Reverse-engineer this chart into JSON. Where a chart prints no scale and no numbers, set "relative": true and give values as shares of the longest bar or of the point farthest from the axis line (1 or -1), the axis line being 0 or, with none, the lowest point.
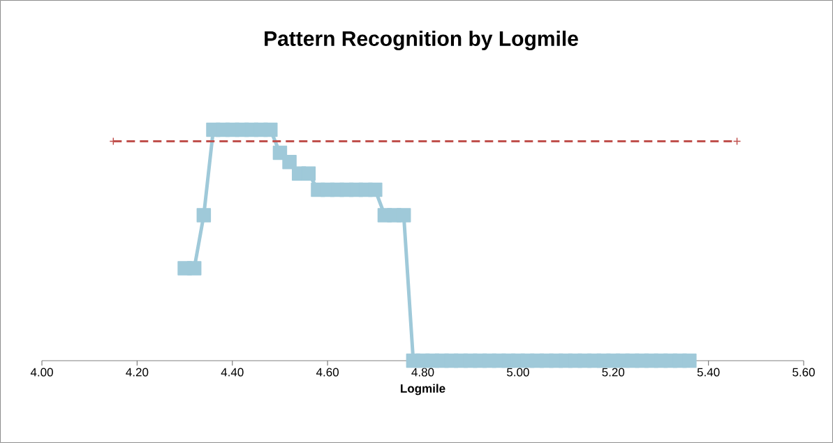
{
  "chart_data": {
    "type": "line",
    "title": "Pattern Recognition by Logmile",
    "xlabel": "Logmile",
    "relative": true,
    "xlim": [
      4.0,
      5.6
    ],
    "xticks": [
      {
        "value": 4.0,
        "label": "4.00"
      },
      {
        "value": 4.2,
        "label": "4.20"
      },
      {
        "value": 4.4,
        "label": "4.40"
      },
      {
        "value": 4.6,
        "label": "4.60"
      },
      {
        "value": 4.8,
        "label": "4.80"
      },
      {
        "value": 5.0,
        "label": "5.00"
      },
      {
        "value": 5.2,
        "label": "5.20"
      },
      {
        "value": 5.4,
        "label": "5.40"
      },
      {
        "value": 5.6,
        "label": "5.60"
      }
    ],
    "grid": false,
    "series": [
      {
        "color": "#9fc9d9",
        "marker": "square",
        "line_style": "solid",
        "x": [
          4.3,
          4.32,
          4.34,
          4.36,
          4.38,
          4.4,
          4.42,
          4.44,
          4.46,
          4.48,
          4.5,
          4.52,
          4.54,
          4.56,
          4.58,
          4.6,
          4.62,
          4.64,
          4.66,
          4.68,
          4.7,
          4.72,
          4.74,
          4.76,
          4.78,
          4.8,
          4.82,
          4.84,
          4.86,
          4.88,
          4.9,
          4.92,
          4.94,
          4.96,
          4.98,
          5.0,
          5.02,
          5.04,
          5.06,
          5.08,
          5.1,
          5.12,
          5.14,
          5.16,
          5.18,
          5.2,
          5.22,
          5.24,
          5.26,
          5.28,
          5.3,
          5.32,
          5.34,
          5.36
        ],
        "values": [
          0.4,
          0.4,
          0.63,
          1,
          1,
          1,
          1,
          1,
          1,
          1,
          0.9,
          0.86,
          0.81,
          0.81,
          0.74,
          0.74,
          0.74,
          0.74,
          0.74,
          0.74,
          0.74,
          0.63,
          0.63,
          0.63,
          0,
          0,
          0,
          0,
          0,
          0,
          0,
          0,
          0,
          0,
          0,
          0,
          0,
          0,
          0,
          0,
          0,
          0,
          0,
          0,
          0,
          0,
          0,
          0,
          0,
          0,
          0,
          0,
          0,
          0
        ]
      },
      {
        "color": "#c0504d",
        "marker": "cross",
        "line_style": "dashed",
        "x": [
          4.15,
          5.46
        ],
        "values": [
          0.95,
          0.95
        ]
      }
    ]
  }
}
